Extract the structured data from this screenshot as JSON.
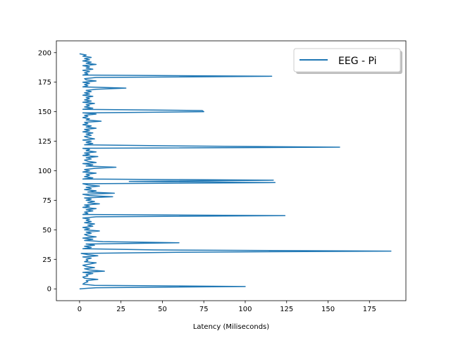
{
  "chart_data": {
    "type": "line",
    "orientation": "horizontal",
    "xlabel": "Latency (Miliseconds)",
    "ylabel": "",
    "xlim": [
      -14,
      197
    ],
    "ylim": [
      -10,
      210
    ],
    "xticks": [
      0,
      25,
      50,
      75,
      100,
      125,
      150,
      175
    ],
    "yticks": [
      0,
      25,
      50,
      75,
      100,
      125,
      150,
      175,
      200
    ],
    "grid": false,
    "legend_position": "top-right",
    "series": [
      {
        "name": "EEG - Pi",
        "color": "#1f77b4",
        "points": [
          [
            0,
            0
          ],
          [
            10,
            1
          ],
          [
            100,
            2
          ],
          [
            9,
            3
          ],
          [
            2,
            4
          ],
          [
            3,
            5
          ],
          [
            5,
            6
          ],
          [
            4,
            7
          ],
          [
            11,
            8
          ],
          [
            3,
            9
          ],
          [
            2,
            10
          ],
          [
            5,
            11
          ],
          [
            4,
            12
          ],
          [
            8,
            13
          ],
          [
            2,
            14
          ],
          [
            15,
            15
          ],
          [
            6,
            16
          ],
          [
            3,
            17
          ],
          [
            9,
            18
          ],
          [
            4,
            19
          ],
          [
            2,
            20
          ],
          [
            6,
            21
          ],
          [
            10,
            22
          ],
          [
            3,
            23
          ],
          [
            5,
            24
          ],
          [
            4,
            25
          ],
          [
            7,
            26
          ],
          [
            2,
            27
          ],
          [
            11,
            28
          ],
          [
            5,
            29
          ],
          [
            1,
            30
          ],
          [
            60,
            31
          ],
          [
            188,
            32
          ],
          [
            45,
            33
          ],
          [
            2,
            34
          ],
          [
            7,
            35
          ],
          [
            3,
            36
          ],
          [
            9,
            37
          ],
          [
            4,
            38
          ],
          [
            60,
            39
          ],
          [
            14,
            40
          ],
          [
            3,
            41
          ],
          [
            8,
            42
          ],
          [
            2,
            43
          ],
          [
            10,
            44
          ],
          [
            5,
            45
          ],
          [
            3,
            46
          ],
          [
            7,
            47
          ],
          [
            4,
            48
          ],
          [
            12,
            49
          ],
          [
            3,
            50
          ],
          [
            6,
            51
          ],
          [
            2,
            52
          ],
          [
            8,
            53
          ],
          [
            5,
            54
          ],
          [
            9,
            55
          ],
          [
            3,
            56
          ],
          [
            7,
            57
          ],
          [
            4,
            58
          ],
          [
            6,
            59
          ],
          [
            2,
            60
          ],
          [
            10,
            61
          ],
          [
            124,
            62
          ],
          [
            2,
            63
          ],
          [
            5,
            64
          ],
          [
            3,
            65
          ],
          [
            8,
            66
          ],
          [
            4,
            67
          ],
          [
            10,
            68
          ],
          [
            2,
            69
          ],
          [
            6,
            70
          ],
          [
            3,
            71
          ],
          [
            12,
            72
          ],
          [
            5,
            73
          ],
          [
            9,
            74
          ],
          [
            4,
            75
          ],
          [
            7,
            76
          ],
          [
            3,
            77
          ],
          [
            20,
            78
          ],
          [
            6,
            79
          ],
          [
            2,
            80
          ],
          [
            21,
            81
          ],
          [
            5,
            82
          ],
          [
            10,
            83
          ],
          [
            3,
            84
          ],
          [
            7,
            85
          ],
          [
            4,
            86
          ],
          [
            12,
            87
          ],
          [
            5,
            88
          ],
          [
            2,
            89
          ],
          [
            118,
            90
          ],
          [
            30,
            91
          ],
          [
            117,
            92
          ],
          [
            2,
            93
          ],
          [
            8,
            94
          ],
          [
            3,
            95
          ],
          [
            6,
            96
          ],
          [
            4,
            97
          ],
          [
            10,
            98
          ],
          [
            2,
            99
          ],
          [
            6,
            100
          ],
          [
            3,
            101
          ],
          [
            9,
            102
          ],
          [
            22,
            103
          ],
          [
            4,
            104
          ],
          [
            8,
            105
          ],
          [
            2,
            106
          ],
          [
            10,
            107
          ],
          [
            5,
            108
          ],
          [
            3,
            109
          ],
          [
            7,
            110
          ],
          [
            4,
            111
          ],
          [
            11,
            112
          ],
          [
            2,
            113
          ],
          [
            6,
            114
          ],
          [
            3,
            115
          ],
          [
            10,
            116
          ],
          [
            4,
            117
          ],
          [
            6,
            118
          ],
          [
            2,
            119
          ],
          [
            157,
            120
          ],
          [
            60,
            121
          ],
          [
            3,
            122
          ],
          [
            8,
            123
          ],
          [
            4,
            124
          ],
          [
            7,
            125
          ],
          [
            2,
            126
          ],
          [
            9,
            127
          ],
          [
            5,
            128
          ],
          [
            3,
            129
          ],
          [
            7,
            130
          ],
          [
            4,
            131
          ],
          [
            8,
            132
          ],
          [
            2,
            133
          ],
          [
            6,
            134
          ],
          [
            3,
            135
          ],
          [
            10,
            136
          ],
          [
            4,
            137
          ],
          [
            7,
            138
          ],
          [
            2,
            139
          ],
          [
            5,
            140
          ],
          [
            3,
            141
          ],
          [
            13,
            142
          ],
          [
            4,
            143
          ],
          [
            6,
            144
          ],
          [
            2,
            145
          ],
          [
            5,
            146
          ],
          [
            3,
            147
          ],
          [
            10,
            148
          ],
          [
            2,
            149
          ],
          [
            75,
            150
          ],
          [
            74,
            151
          ],
          [
            2,
            152
          ],
          [
            8,
            153
          ],
          [
            3,
            154
          ],
          [
            6,
            155
          ],
          [
            4,
            156
          ],
          [
            9,
            157
          ],
          [
            2,
            158
          ],
          [
            7,
            159
          ],
          [
            3,
            160
          ],
          [
            6,
            161
          ],
          [
            4,
            162
          ],
          [
            8,
            163
          ],
          [
            2,
            164
          ],
          [
            6,
            165
          ],
          [
            3,
            166
          ],
          [
            7,
            167
          ],
          [
            4,
            168
          ],
          [
            10,
            169
          ],
          [
            28,
            170
          ],
          [
            2,
            171
          ],
          [
            5,
            172
          ],
          [
            3,
            173
          ],
          [
            6,
            174
          ],
          [
            2,
            175
          ],
          [
            10,
            176
          ],
          [
            4,
            177
          ],
          [
            3,
            178
          ],
          [
            10,
            179
          ],
          [
            116,
            180
          ],
          [
            2,
            181
          ],
          [
            5,
            182
          ],
          [
            3,
            183
          ],
          [
            6,
            184
          ],
          [
            2,
            185
          ],
          [
            8,
            186
          ],
          [
            4,
            187
          ],
          [
            6,
            188
          ],
          [
            2,
            189
          ],
          [
            10,
            190
          ],
          [
            4,
            191
          ],
          [
            7,
            192
          ],
          [
            2,
            193
          ],
          [
            6,
            194
          ],
          [
            3,
            195
          ],
          [
            7,
            196
          ],
          [
            2,
            197
          ],
          [
            4,
            198
          ],
          [
            0,
            199
          ]
        ]
      }
    ]
  }
}
